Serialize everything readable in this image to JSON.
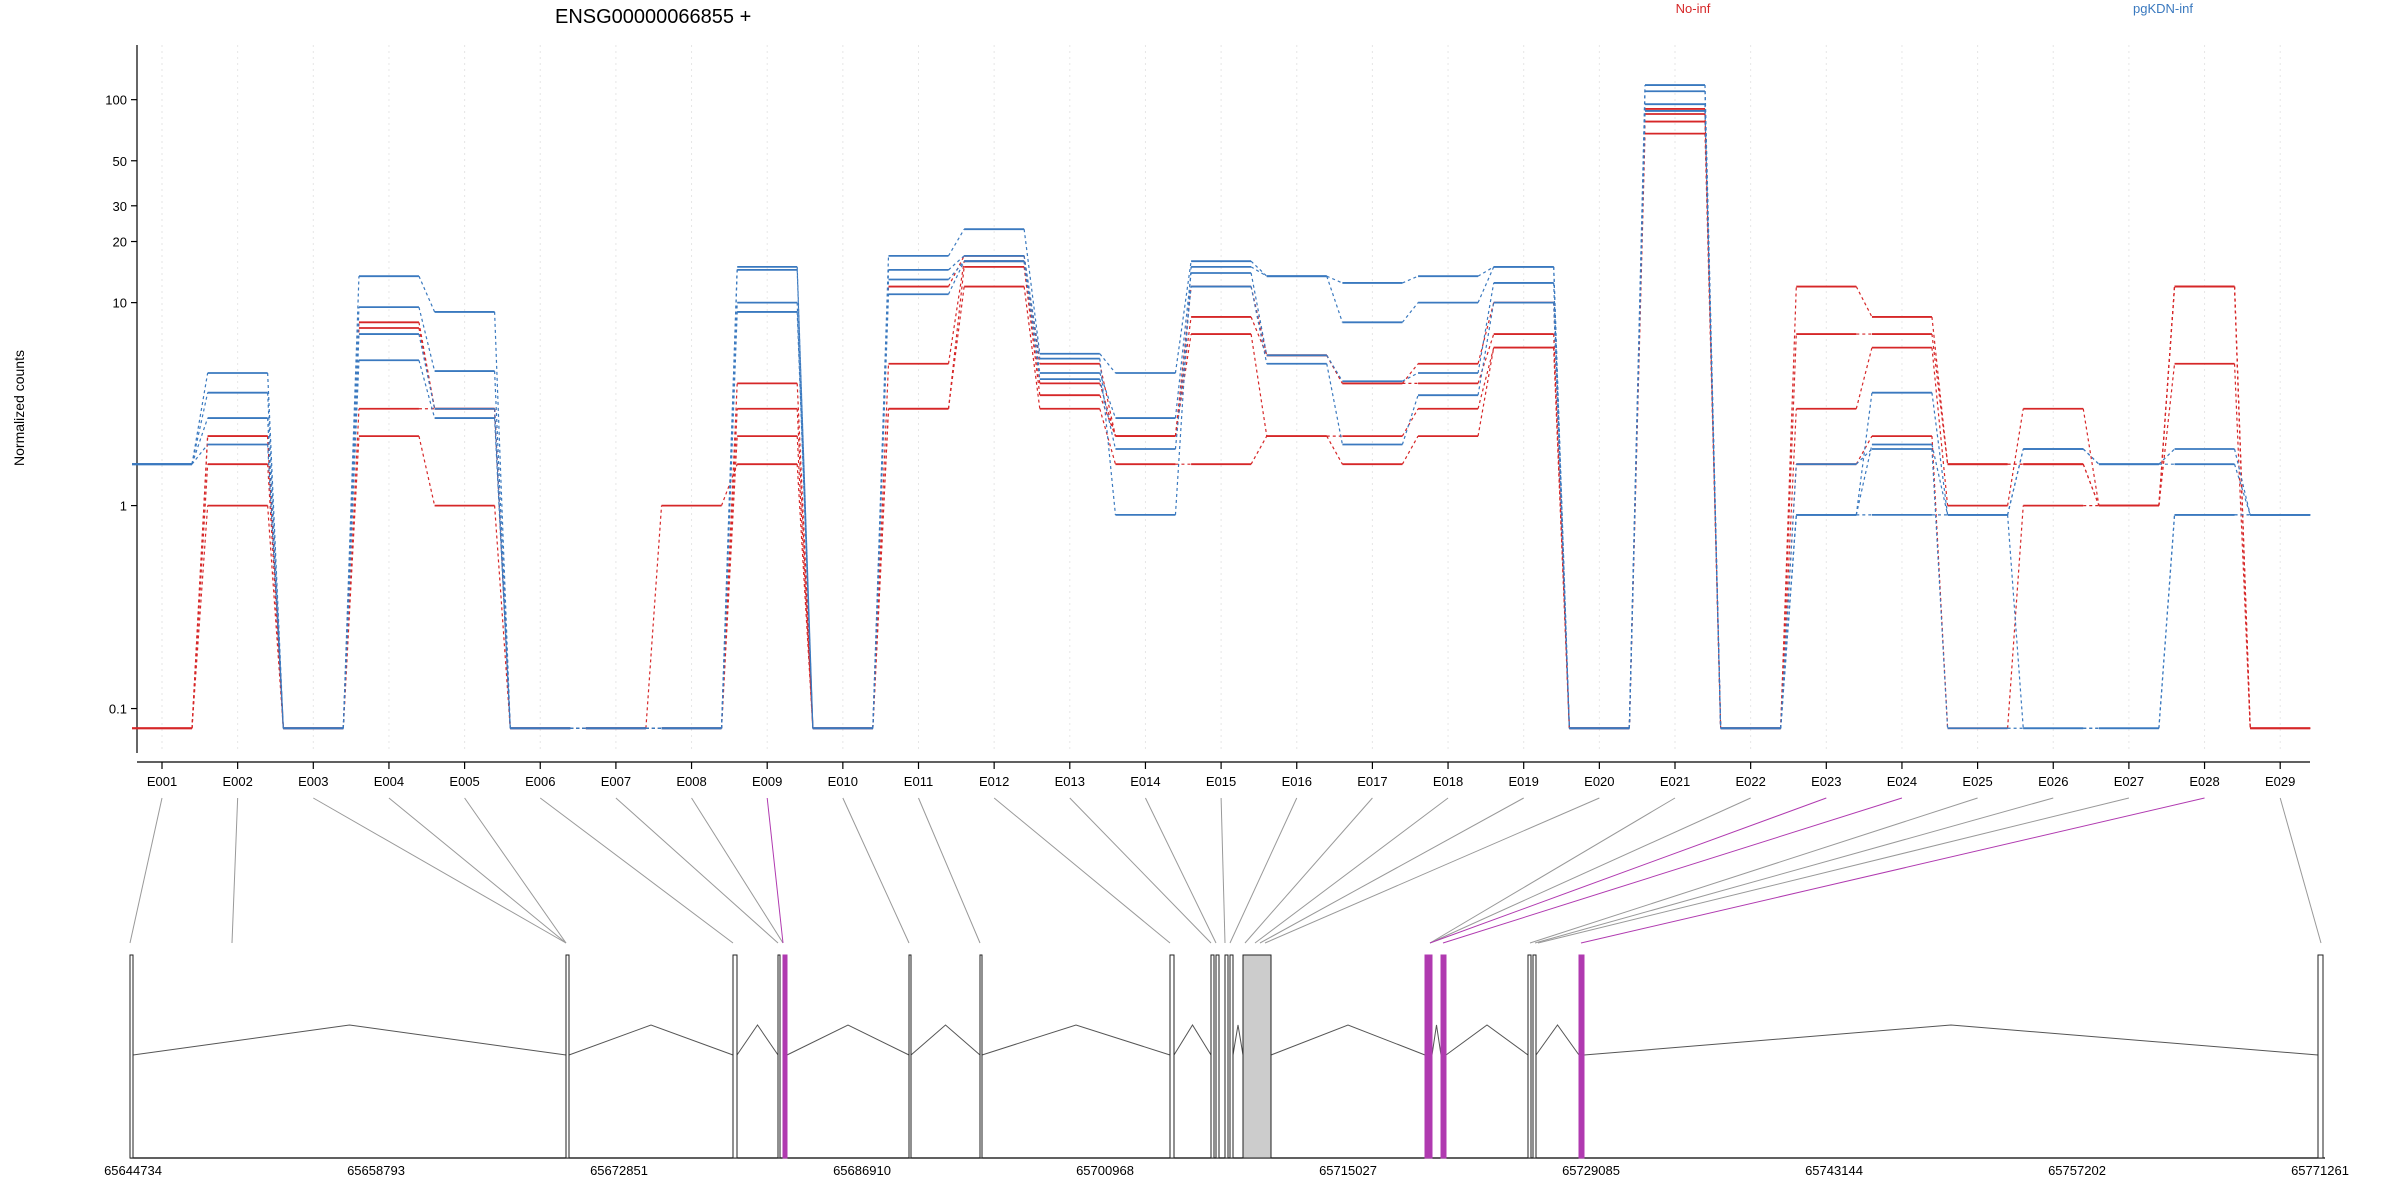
{
  "chart_data": {
    "type": "line",
    "title": "ENSG00000066855 +",
    "ylabel": "Normalized counts",
    "yscale": "log",
    "ylim": [
      0.07,
      140
    ],
    "yticks": [
      {
        "v": 0.1,
        "label": "0.1"
      },
      {
        "v": 1,
        "label": "1"
      },
      {
        "v": 10,
        "label": "10"
      },
      {
        "v": 20,
        "label": "20"
      },
      {
        "v": 30,
        "label": "30"
      },
      {
        "v": 50,
        "label": "50"
      },
      {
        "v": 100,
        "label": "100"
      }
    ],
    "grid": true,
    "categories": [
      "E001",
      "E002",
      "E003",
      "E004",
      "E005",
      "E006",
      "E007",
      "E008",
      "E009",
      "E010",
      "E011",
      "E012",
      "E013",
      "E014",
      "E015",
      "E016",
      "E017",
      "E018",
      "E019",
      "E020",
      "E021",
      "E022",
      "E023",
      "E024",
      "E025",
      "E026",
      "E027",
      "E028",
      "E029"
    ],
    "series": [
      {
        "group": "No-inf",
        "color": "#d62728",
        "values": [
          0.08,
          1,
          0.08,
          2.2,
          1,
          0.08,
          0.08,
          1,
          1.6,
          0.08,
          3,
          12,
          3,
          1.6,
          1.6,
          2.2,
          1.6,
          2.2,
          6,
          0.08,
          68,
          0.08,
          1.6,
          2.2,
          0.08,
          1,
          1,
          5,
          0.08
        ]
      },
      {
        "group": "No-inf",
        "color": "#d62728",
        "values": [
          0.08,
          1.6,
          0.08,
          3,
          3,
          0.08,
          0.08,
          0.08,
          2.2,
          0.08,
          3,
          15,
          3.5,
          2.2,
          7,
          2.2,
          2.2,
          3,
          6,
          0.08,
          78,
          0.08,
          3,
          6,
          1,
          3,
          1,
          12,
          0.08
        ]
      },
      {
        "group": "No-inf",
        "color": "#d62728",
        "values": [
          0.08,
          2.2,
          0.08,
          7.5,
          3,
          0.08,
          0.08,
          0.08,
          3,
          0.08,
          5,
          16,
          4,
          2.2,
          8.5,
          5.5,
          4,
          4,
          7,
          0.08,
          85,
          0.08,
          7,
          7,
          1.6,
          1.6,
          1,
          12,
          0.08
        ]
      },
      {
        "group": "No-inf",
        "color": "#d62728",
        "values": [
          0.08,
          2.2,
          0.08,
          8,
          3,
          0.08,
          0.08,
          0.08,
          4,
          0.08,
          12,
          17,
          5,
          2.2,
          12,
          5.5,
          4,
          5,
          10,
          0.08,
          90,
          0.08,
          12,
          8.5,
          1.6,
          1.6,
          1,
          12,
          0.08
        ]
      },
      {
        "group": "pgKDN-inf",
        "color": "#3a79bf",
        "values": [
          1.6,
          2,
          0.08,
          7,
          3,
          0.08,
          0.08,
          0.08,
          9,
          0.08,
          11,
          16,
          4.2,
          1.9,
          12,
          5,
          2,
          3.5,
          10,
          0.08,
          88,
          0.08,
          1.6,
          1.9,
          0.08,
          0.08,
          0.08,
          0.9,
          0.9
        ]
      },
      {
        "group": "pgKDN-inf",
        "color": "#3a79bf",
        "values": [
          1.6,
          2.7,
          0.08,
          5.2,
          2.7,
          0.08,
          0.08,
          0.08,
          10,
          0.08,
          13,
          16,
          4.5,
          2.7,
          14,
          5.5,
          4.1,
          4.5,
          12.5,
          0.08,
          95,
          0.08,
          0.9,
          2,
          0.9,
          1.9,
          1.6,
          1.6,
          0.9
        ]
      },
      {
        "group": "pgKDN-inf",
        "color": "#3a79bf",
        "values": [
          1.6,
          3.6,
          0.08,
          9.5,
          4.6,
          0.08,
          0.08,
          0.08,
          14.5,
          0.08,
          14.5,
          17,
          5.3,
          0.9,
          15,
          13.5,
          8,
          10,
          15,
          0.08,
          110,
          0.08,
          0.9,
          3.6,
          0.9,
          1.9,
          1.6,
          1.9,
          0.9
        ]
      },
      {
        "group": "pgKDN-inf",
        "color": "#3a79bf",
        "values": [
          1.6,
          4.5,
          0.08,
          13.5,
          9,
          0.08,
          0.08,
          0.08,
          15,
          0.08,
          17,
          23,
          5.6,
          4.5,
          16,
          13.5,
          12.5,
          13.5,
          15,
          0.08,
          118,
          0.08,
          0.9,
          0.9,
          0.9,
          0.08,
          0.08,
          0.9,
          0.9
        ]
      }
    ],
    "legend": [
      {
        "label": "No-inf",
        "color": "#d62728"
      },
      {
        "label": "pgKDN-inf",
        "color": "#3a79bf"
      }
    ],
    "legend_position": "top-right",
    "genome": {
      "coord_labels": [
        "65644734",
        "65658793",
        "65672851",
        "65686910",
        "65700968",
        "65715027",
        "65729085",
        "65743144",
        "65757202",
        "65771261"
      ],
      "exon_color": "#ffffff",
      "highlight_color": "#b03ab0",
      "gray_exon_color": "#cccccc",
      "highlighted_exons": [
        "E009",
        "E023",
        "E024",
        "E028"
      ]
    }
  }
}
